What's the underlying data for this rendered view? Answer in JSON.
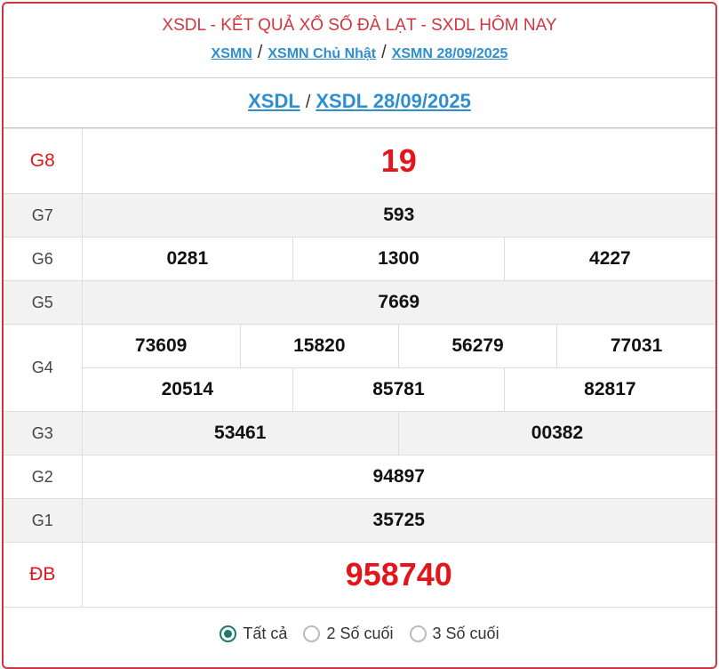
{
  "header": {
    "title": "XSDL - KẾT QUẢ XỔ SỐ ĐÀ LẠT - SXDL HÔM NAY",
    "crumbs": [
      "XSMN",
      "XSMN Chủ Nhật",
      "XSMN 28/09/2025"
    ],
    "sep": "/"
  },
  "subheader": {
    "links": [
      "XSDL",
      "XSDL 28/09/2025"
    ],
    "sep": "/"
  },
  "prizes": {
    "g8": {
      "label": "G8",
      "nums": [
        "19"
      ]
    },
    "g7": {
      "label": "G7",
      "nums": [
        "593"
      ]
    },
    "g6": {
      "label": "G6",
      "nums": [
        "0281",
        "1300",
        "4227"
      ]
    },
    "g5": {
      "label": "G5",
      "nums": [
        "7669"
      ]
    },
    "g4": {
      "label": "G4",
      "nums": [
        "73609",
        "15820",
        "56279",
        "77031",
        "20514",
        "85781",
        "82817"
      ]
    },
    "g3": {
      "label": "G3",
      "nums": [
        "53461",
        "00382"
      ]
    },
    "g2": {
      "label": "G2",
      "nums": [
        "94897"
      ]
    },
    "g1": {
      "label": "G1",
      "nums": [
        "35725"
      ]
    },
    "db": {
      "label": "ĐB",
      "nums": [
        "958740"
      ]
    }
  },
  "filter": {
    "options": [
      "Tất cả",
      "2 Số cuối",
      "3 Số cuối"
    ],
    "selected": "Tất cả"
  },
  "colors": {
    "accent": "#d0363f",
    "link": "#2e8fd0",
    "prize_red": "#e3161c",
    "radio": "#1b7a6b"
  }
}
